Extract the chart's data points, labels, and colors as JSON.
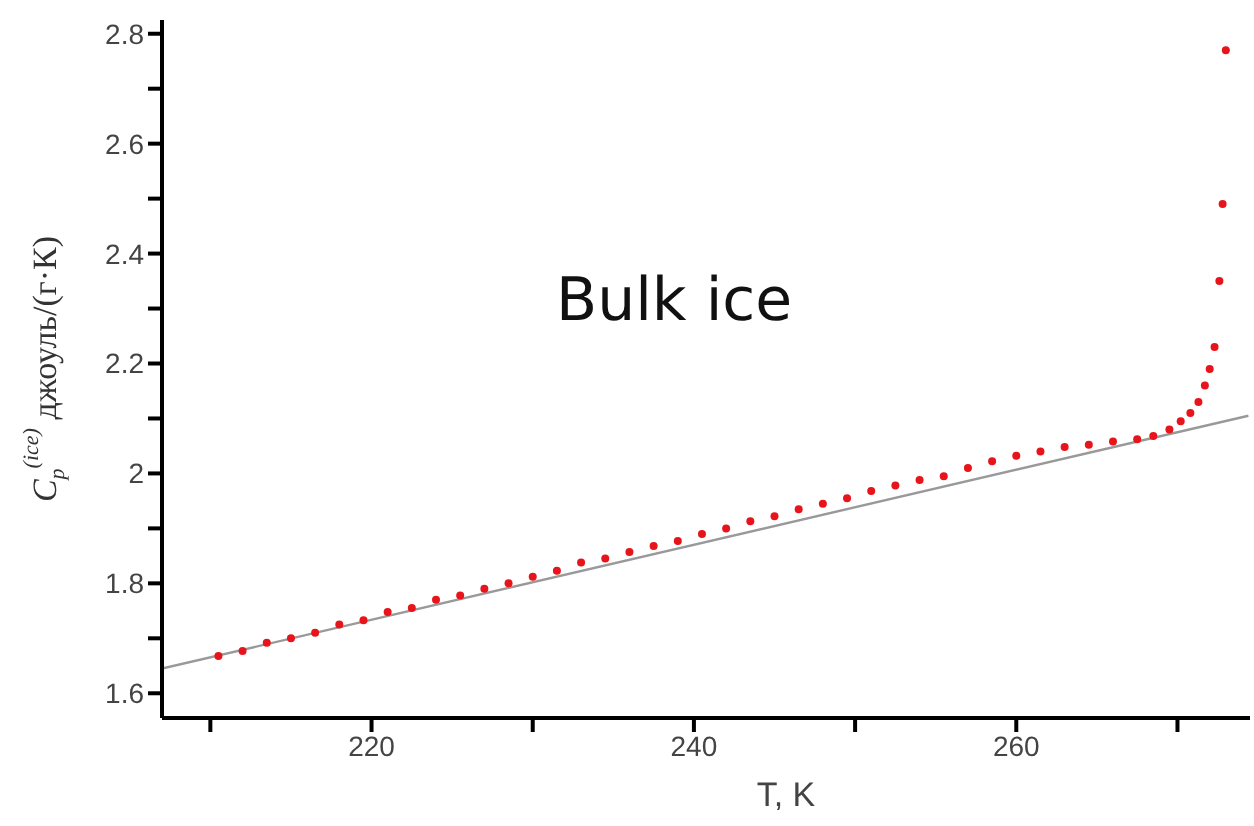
{
  "chart_data": {
    "type": "scatter",
    "xlabel": "T, K",
    "ylabel": "C$_{p}$$^{(ice)}$ джоуль/(г·К)",
    "annotations": [
      "Bulk ice"
    ],
    "xlim": [
      207,
      274.5
    ],
    "xticks": [
      {
        "value": 210,
        "label": null
      },
      220,
      {
        "value": 230,
        "label": null
      },
      240,
      {
        "value": 250,
        "label": null
      },
      260,
      {
        "value": 270,
        "label": null
      }
    ],
    "ylim": [
      1.555,
      2.825
    ],
    "yticks": [
      1.6,
      {
        "value": 1.7,
        "label": null
      },
      1.8,
      {
        "value": 1.9,
        "label": null
      },
      2.0,
      {
        "value": 2.1,
        "label": null
      },
      2.2,
      {
        "value": 2.3,
        "label": null
      },
      2.4,
      {
        "value": 2.5,
        "label": null
      },
      2.6,
      {
        "value": 2.7,
        "label": null
      },
      2.8
    ],
    "grid": false,
    "series": [
      {
        "type": "line",
        "color": "#999999",
        "marker": "none",
        "line_style": "solid",
        "x": [
          207,
          274.4
        ],
        "values": [
          1.645,
          2.105
        ]
      },
      {
        "color": "#e8141c",
        "marker": "circle",
        "x": [
          210.5,
          212,
          213.5,
          215,
          216.5,
          218,
          219.5,
          221,
          222.5,
          224,
          225.5,
          227,
          228.5,
          230,
          231.5,
          233,
          234.5,
          236,
          237.5,
          239,
          240.5,
          242,
          243.5,
          245,
          246.5,
          248,
          249.5,
          251,
          252.5,
          254,
          255.5,
          257,
          258.5,
          260,
          261.5,
          263,
          264.5,
          266,
          267.5,
          268.5,
          269.5,
          270.2,
          270.8,
          271.3,
          271.7,
          272,
          272.3,
          272.6,
          272.8,
          273
        ],
        "values": [
          1.668,
          1.677,
          1.692,
          1.7,
          1.71,
          1.725,
          1.733,
          1.748,
          1.755,
          1.77,
          1.778,
          1.79,
          1.8,
          1.812,
          1.823,
          1.838,
          1.845,
          1.857,
          1.868,
          1.877,
          1.89,
          1.9,
          1.913,
          1.922,
          1.935,
          1.945,
          1.955,
          1.968,
          1.978,
          1.988,
          1.995,
          2.01,
          2.022,
          2.032,
          2.04,
          2.048,
          2.052,
          2.058,
          2.062,
          2.068,
          2.08,
          2.095,
          2.11,
          2.13,
          2.16,
          2.19,
          2.23,
          2.35,
          2.49,
          2.77
        ]
      }
    ]
  }
}
